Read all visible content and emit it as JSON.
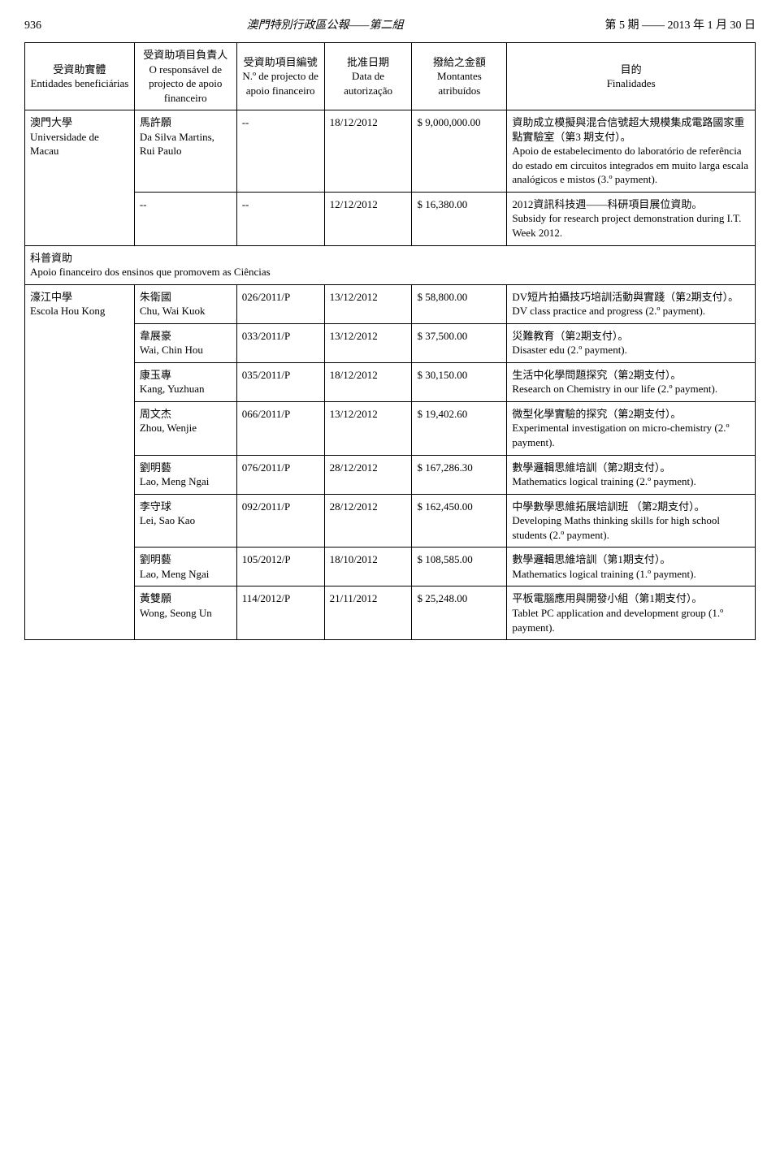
{
  "header": {
    "page_no": "936",
    "center": "澳門特別行政區公報——第二組",
    "right": "第 5 期 —— 2013 年 1 月 30 日"
  },
  "columns": {
    "c1_zh": "受資助實體",
    "c1_pt": "Entidades beneficiárias",
    "c2_zh": "受資助項目負責人",
    "c2_pt": "O responsável de projecto de apoio financeiro",
    "c3_zh": "受資助項目編號",
    "c3_pt": "N.º de projecto de apoio financeiro",
    "c4_zh": "批准日期",
    "c4_pt": "Data de autorização",
    "c5_zh": "撥給之金額",
    "c5_pt": "Montantes atribuídos",
    "c6_zh": "目的",
    "c6_pt": "Finalidades"
  },
  "entities": {
    "umac_zh": "澳門大學",
    "umac_pt": "Universidade de Macau",
    "houkong_zh": "濠江中學",
    "houkong_pt": "Escola Hou Kong"
  },
  "section": {
    "zh": "科普資助",
    "pt": "Apoio financeiro dos ensinos que promovem as Ciências"
  },
  "rows": [
    {
      "resp_zh": "馬許願",
      "resp_pt": "Da Silva Martins, Rui Paulo",
      "proj": "--",
      "date": "18/12/2012",
      "amount": "$ 9,000,000.00",
      "purpose_zh": "資助成立模擬與混合信號超大規模集成電路國家重點實驗室（第3 期支付）。",
      "purpose_pt": "Apoio de estabelecimento do laboratório de referência do estado em circuitos integrados em muito larga escala analógicos e mistos (3.º payment)."
    },
    {
      "resp_zh": "--",
      "resp_pt": "",
      "proj": "--",
      "date": "12/12/2012",
      "amount": "$ 16,380.00",
      "purpose_zh": "2012資訊科技週——科研項目展位資助。",
      "purpose_pt": "Subsidy for research project demonstration during I.T. Week 2012."
    },
    {
      "resp_zh": "朱衛國",
      "resp_pt": "Chu, Wai Kuok",
      "proj": "026/2011/P",
      "date": "13/12/2012",
      "amount": "$ 58,800.00",
      "purpose_zh": "DV短片拍攝技巧培訓活動與實踐（第2期支付）。",
      "purpose_pt": "DV class practice and progress (2.º payment)."
    },
    {
      "resp_zh": "韋展豪",
      "resp_pt": "Wai, Chin Hou",
      "proj": "033/2011/P",
      "date": "13/12/2012",
      "amount": "$ 37,500.00",
      "purpose_zh": "災難教育（第2期支付）。",
      "purpose_pt": "Disaster edu (2.º payment)."
    },
    {
      "resp_zh": "康玉專",
      "resp_pt": "Kang, Yuzhuan",
      "proj": "035/2011/P",
      "date": "18/12/2012",
      "amount": "$ 30,150.00",
      "purpose_zh": "生活中化學問題探究（第2期支付）。",
      "purpose_pt": "Research on Chemistry in our life (2.º payment)."
    },
    {
      "resp_zh": "周文杰",
      "resp_pt": "Zhou, Wenjie",
      "proj": "066/2011/P",
      "date": "13/12/2012",
      "amount": "$ 19,402.60",
      "purpose_zh": "微型化學實驗的探究（第2期支付）。",
      "purpose_pt": "Experimental investigation on micro-chemistry (2.º payment)."
    },
    {
      "resp_zh": "劉明藝",
      "resp_pt": "Lao, Meng Ngai",
      "proj": "076/2011/P",
      "date": "28/12/2012",
      "amount": "$ 167,286.30",
      "purpose_zh": "數學邏輯思維培訓（第2期支付）。",
      "purpose_pt": "Mathematics logical training (2.º payment)."
    },
    {
      "resp_zh": "李守球",
      "resp_pt": "Lei, Sao Kao",
      "proj": "092/2011/P",
      "date": "28/12/2012",
      "amount": "$ 162,450.00",
      "purpose_zh": "中學數學思維拓展培訓班 （第2期支付）。",
      "purpose_pt": "Developing Maths thinking skills for high school students (2.º payment)."
    },
    {
      "resp_zh": "劉明藝",
      "resp_pt": "Lao, Meng Ngai",
      "proj": "105/2012/P",
      "date": "18/10/2012",
      "amount": "$ 108,585.00",
      "purpose_zh": "數學邏輯思維培訓（第1期支付）。",
      "purpose_pt": "Mathematics logical training (1.º payment)."
    },
    {
      "resp_zh": "黃雙願",
      "resp_pt": "Wong, Seong Un",
      "proj": "114/2012/P",
      "date": "21/11/2012",
      "amount": "$ 25,248.00",
      "purpose_zh": "平板電腦應用與開發小組（第1期支付）。",
      "purpose_pt": "Tablet PC application and development group (1.º payment)."
    }
  ]
}
